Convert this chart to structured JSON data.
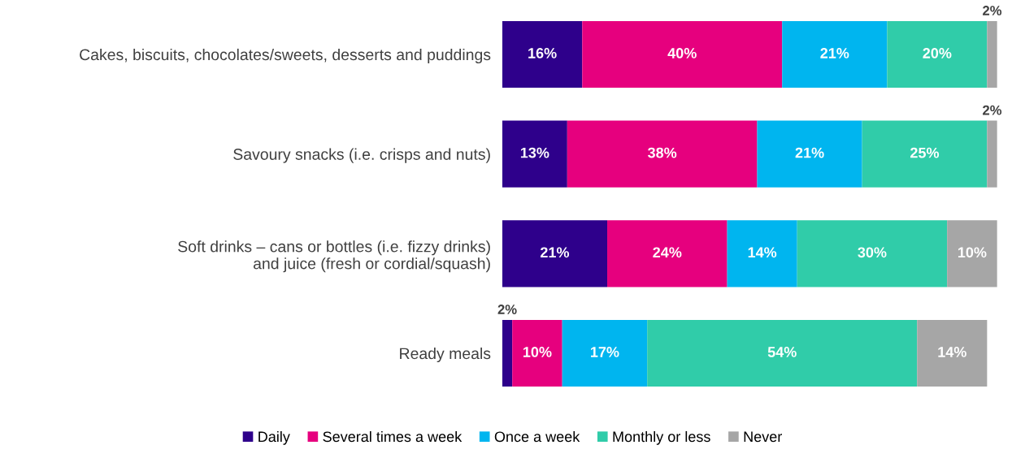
{
  "chart_data": {
    "type": "bar",
    "orientation": "horizontal",
    "stacked": true,
    "legend": "bottom",
    "categories": [
      "Cakes, biscuits, chocolates/sweets, desserts and puddings",
      "Savoury snacks (i.e. crisps and nuts)",
      "Soft drinks – cans or bottles (i.e. fizzy drinks)\nand juice (fresh or cordial/squash)",
      "Ready meals"
    ],
    "series": [
      {
        "name": "Daily",
        "color": "#2e008b",
        "values": [
          16,
          13,
          21,
          2
        ],
        "value_labels": [
          "16%",
          "13%",
          "21%",
          "2%"
        ]
      },
      {
        "name": "Several times a week",
        "color": "#e6007e",
        "values": [
          40,
          38,
          24,
          10
        ],
        "value_labels": [
          "40%",
          "38%",
          "24%",
          "10%"
        ]
      },
      {
        "name": "Once a week",
        "color": "#00b5ef",
        "values": [
          21,
          21,
          14,
          17
        ],
        "value_labels": [
          "21%",
          "21%",
          "14%",
          "17%"
        ]
      },
      {
        "name": "Monthly or less",
        "color": "#30cca9",
        "values": [
          20,
          25,
          30,
          54
        ],
        "value_labels": [
          "20%",
          "25%",
          "30%",
          "54%"
        ]
      },
      {
        "name": "Never",
        "color": "#a6a6a6",
        "values": [
          2,
          2,
          10,
          14
        ],
        "value_labels": [
          "2%",
          "2%",
          "10%",
          "14%"
        ]
      }
    ]
  }
}
